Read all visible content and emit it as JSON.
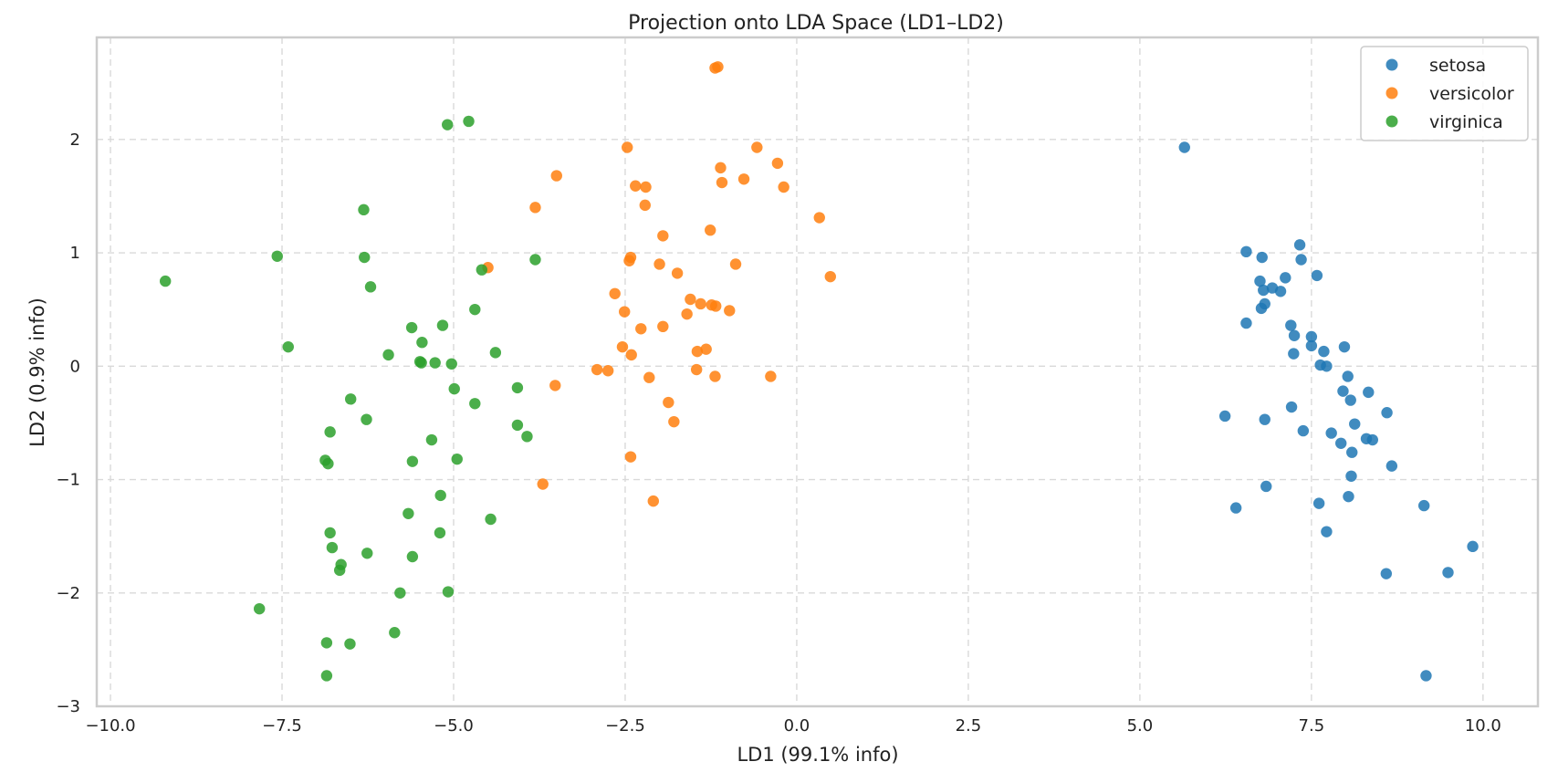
{
  "chart_data": {
    "type": "scatter",
    "title": "Projection onto LDA Space (LD1–LD2)",
    "xlabel": "LD1 (99.1% info)",
    "ylabel": "LD2 (0.9% info)",
    "xlim": [
      -10.2,
      10.8
    ],
    "ylim": [
      -3.0,
      2.9
    ],
    "xticks": [
      -10.0,
      -7.5,
      -5.0,
      -2.5,
      0.0,
      2.5,
      5.0,
      7.5,
      10.0
    ],
    "xtick_labels": [
      "−10.0",
      "−7.5",
      "−5.0",
      "−2.5",
      "0.0",
      "2.5",
      "5.0",
      "7.5",
      "10.0"
    ],
    "yticks": [
      -3,
      -2,
      -1,
      0,
      1,
      2
    ],
    "ytick_labels": [
      "−3",
      "−2",
      "−1",
      "0",
      "1",
      "2"
    ],
    "grid": true,
    "legend_position": "top-right",
    "series": [
      {
        "name": "setosa",
        "color": "#1f77b4",
        "points": [
          [
            5.65,
            1.93
          ],
          [
            6.55,
            1.01
          ],
          [
            6.78,
            0.96
          ],
          [
            7.33,
            1.07
          ],
          [
            7.35,
            0.94
          ],
          [
            7.58,
            0.8
          ],
          [
            6.75,
            0.75
          ],
          [
            6.8,
            0.67
          ],
          [
            6.93,
            0.69
          ],
          [
            7.05,
            0.66
          ],
          [
            7.12,
            0.78
          ],
          [
            6.82,
            0.55
          ],
          [
            6.77,
            0.51
          ],
          [
            6.55,
            0.38
          ],
          [
            7.2,
            0.36
          ],
          [
            7.25,
            0.27
          ],
          [
            7.5,
            0.26
          ],
          [
            7.5,
            0.18
          ],
          [
            7.98,
            0.17
          ],
          [
            7.68,
            0.13
          ],
          [
            7.24,
            0.11
          ],
          [
            7.63,
            0.01
          ],
          [
            7.72,
            0.0
          ],
          [
            8.03,
            -0.09
          ],
          [
            7.96,
            -0.22
          ],
          [
            8.33,
            -0.23
          ],
          [
            8.07,
            -0.3
          ],
          [
            8.6,
            -0.41
          ],
          [
            6.24,
            -0.44
          ],
          [
            6.82,
            -0.47
          ],
          [
            7.21,
            -0.36
          ],
          [
            8.13,
            -0.51
          ],
          [
            7.38,
            -0.57
          ],
          [
            7.79,
            -0.59
          ],
          [
            8.3,
            -0.64
          ],
          [
            8.39,
            -0.65
          ],
          [
            7.93,
            -0.68
          ],
          [
            8.09,
            -0.76
          ],
          [
            8.67,
            -0.88
          ],
          [
            8.08,
            -0.97
          ],
          [
            6.84,
            -1.06
          ],
          [
            8.04,
            -1.15
          ],
          [
            7.61,
            -1.21
          ],
          [
            6.4,
            -1.25
          ],
          [
            9.14,
            -1.23
          ],
          [
            7.72,
            -1.46
          ],
          [
            9.85,
            -1.59
          ],
          [
            8.59,
            -1.83
          ],
          [
            9.49,
            -1.82
          ],
          [
            9.17,
            -2.73
          ]
        ]
      },
      {
        "name": "versicolor",
        "color": "#ff7f0e",
        "points": [
          [
            -1.19,
            2.63
          ],
          [
            -1.15,
            2.64
          ],
          [
            -2.47,
            1.93
          ],
          [
            -0.58,
            1.93
          ],
          [
            -0.28,
            1.79
          ],
          [
            -1.11,
            1.75
          ],
          [
            -3.5,
            1.68
          ],
          [
            -0.77,
            1.65
          ],
          [
            -1.09,
            1.62
          ],
          [
            -2.35,
            1.59
          ],
          [
            -2.2,
            1.58
          ],
          [
            -0.19,
            1.58
          ],
          [
            -2.21,
            1.42
          ],
          [
            -3.81,
            1.4
          ],
          [
            0.33,
            1.31
          ],
          [
            -1.26,
            1.2
          ],
          [
            -1.95,
            1.15
          ],
          [
            -2.42,
            0.96
          ],
          [
            -2.44,
            0.93
          ],
          [
            -2.0,
            0.9
          ],
          [
            -0.89,
            0.9
          ],
          [
            -4.5,
            0.87
          ],
          [
            -1.74,
            0.82
          ],
          [
            0.49,
            0.79
          ],
          [
            -2.65,
            0.64
          ],
          [
            -1.55,
            0.59
          ],
          [
            -1.4,
            0.55
          ],
          [
            -1.24,
            0.54
          ],
          [
            -1.18,
            0.53
          ],
          [
            -0.98,
            0.49
          ],
          [
            -2.51,
            0.48
          ],
          [
            -1.6,
            0.46
          ],
          [
            -1.95,
            0.35
          ],
          [
            -2.27,
            0.33
          ],
          [
            -2.54,
            0.17
          ],
          [
            -1.32,
            0.15
          ],
          [
            -1.45,
            0.13
          ],
          [
            -2.41,
            0.1
          ],
          [
            -2.91,
            -0.03
          ],
          [
            -2.75,
            -0.04
          ],
          [
            -1.46,
            -0.03
          ],
          [
            -2.15,
            -0.1
          ],
          [
            -1.19,
            -0.09
          ],
          [
            -0.38,
            -0.09
          ],
          [
            -3.52,
            -0.17
          ],
          [
            -1.87,
            -0.32
          ],
          [
            -1.79,
            -0.49
          ],
          [
            -2.42,
            -0.8
          ],
          [
            -3.7,
            -1.04
          ],
          [
            -2.09,
            -1.19
          ]
        ]
      },
      {
        "name": "virginica",
        "color": "#2ca02c",
        "points": [
          [
            -4.78,
            2.16
          ],
          [
            -5.09,
            2.13
          ],
          [
            -6.31,
            1.38
          ],
          [
            -7.57,
            0.97
          ],
          [
            -6.3,
            0.96
          ],
          [
            -9.2,
            0.75
          ],
          [
            -4.59,
            0.85
          ],
          [
            -3.81,
            0.94
          ],
          [
            -6.21,
            0.7
          ],
          [
            -4.69,
            0.5
          ],
          [
            -5.61,
            0.34
          ],
          [
            -5.16,
            0.36
          ],
          [
            -7.41,
            0.17
          ],
          [
            -5.46,
            0.21
          ],
          [
            -4.39,
            0.12
          ],
          [
            -5.95,
            0.1
          ],
          [
            -5.49,
            0.04
          ],
          [
            -5.47,
            0.03
          ],
          [
            -5.27,
            0.03
          ],
          [
            -5.03,
            0.02
          ],
          [
            -4.07,
            -0.19
          ],
          [
            -4.99,
            -0.2
          ],
          [
            -6.5,
            -0.29
          ],
          [
            -4.69,
            -0.33
          ],
          [
            -6.27,
            -0.47
          ],
          [
            -4.07,
            -0.52
          ],
          [
            -3.93,
            -0.62
          ],
          [
            -6.8,
            -0.58
          ],
          [
            -5.32,
            -0.65
          ],
          [
            -6.87,
            -0.83
          ],
          [
            -6.83,
            -0.86
          ],
          [
            -5.6,
            -0.84
          ],
          [
            -4.95,
            -0.82
          ],
          [
            -5.19,
            -1.14
          ],
          [
            -4.46,
            -1.35
          ],
          [
            -5.66,
            -1.3
          ],
          [
            -6.8,
            -1.47
          ],
          [
            -5.2,
            -1.47
          ],
          [
            -6.77,
            -1.6
          ],
          [
            -6.26,
            -1.65
          ],
          [
            -5.6,
            -1.68
          ],
          [
            -6.64,
            -1.75
          ],
          [
            -6.66,
            -1.8
          ],
          [
            -5.08,
            -1.99
          ],
          [
            -5.78,
            -2.0
          ],
          [
            -7.83,
            -2.14
          ],
          [
            -5.86,
            -2.35
          ],
          [
            -6.85,
            -2.44
          ],
          [
            -6.51,
            -2.45
          ],
          [
            -6.85,
            -2.73
          ]
        ]
      }
    ]
  }
}
